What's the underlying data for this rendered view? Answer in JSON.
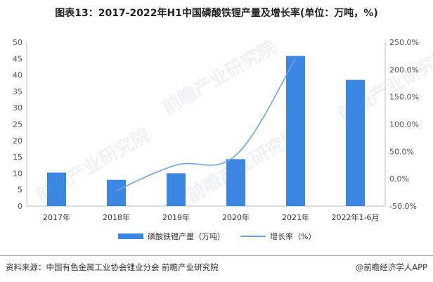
{
  "title": "图表13：2017-2022年H1中国磷酸铁锂产量及增长率(单位：万吨，%)",
  "watermark": "前瞻产业研究院",
  "footer": {
    "source": "资料来源：中国有色金属工业协会锂业分会 前瞻产业研究院",
    "brand": "@前瞻经济学人APP"
  },
  "colors": {
    "bar": "#3b86e0",
    "line": "#6fa3e3",
    "axis": "#bfbfbf"
  },
  "chart_data": {
    "type": "bar",
    "categories": [
      "2017年",
      "2018年",
      "2019年",
      "2020年",
      "2021年",
      "2022年1-6月"
    ],
    "series": [
      {
        "name": "磷酸铁锂产量（万吨）",
        "type": "bar",
        "axis": "left",
        "values": [
          10.2,
          8.0,
          10.0,
          14.3,
          45.8,
          38.5
        ]
      },
      {
        "name": "增长率（%）",
        "type": "line",
        "axis": "right",
        "values": [
          null,
          -21.6,
          25.0,
          43.0,
          220.3,
          null
        ]
      }
    ],
    "y_left": {
      "lim": [
        0,
        50
      ],
      "ticks": [
        "0",
        "5",
        "10",
        "15",
        "20",
        "25",
        "30",
        "35",
        "40",
        "45",
        "50"
      ]
    },
    "y_right": {
      "lim": [
        -50,
        250
      ],
      "ticks": [
        "-50.0%",
        "0.0%",
        "50.0%",
        "100.0%",
        "150.0%",
        "200.0%",
        "250.0%"
      ]
    },
    "legend_position": "bottom"
  }
}
